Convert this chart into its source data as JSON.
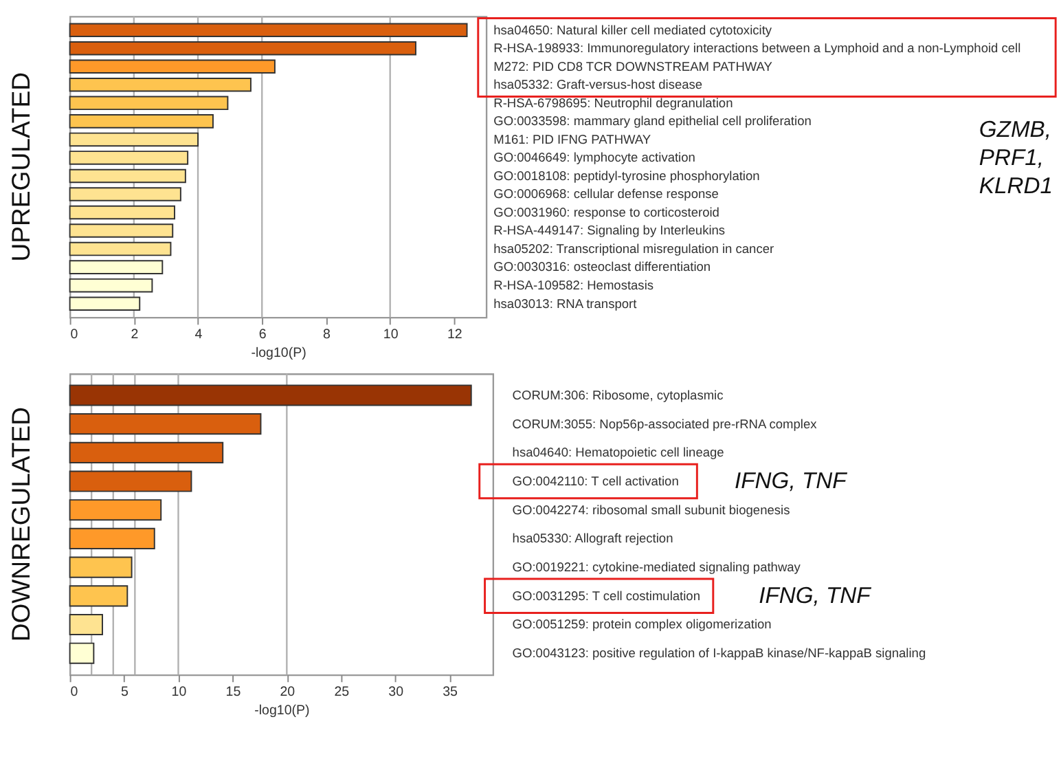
{
  "chart_data": [
    {
      "type": "bar",
      "orientation": "horizontal",
      "xlabel": "-log10(P)",
      "xlim": [
        0,
        13
      ],
      "xticks": [
        0,
        2,
        4,
        6,
        8,
        10,
        12
      ],
      "grid": false,
      "categories": [
        "hsa04650: Natural killer cell mediated cytotoxicity",
        "R-HSA-198933: Immunoregulatory interactions between a Lymphoid and a non-Lymphoid cell",
        "M272: PID CD8 TCR DOWNSTREAM PATHWAY",
        "hsa05332: Graft-versus-host disease",
        "R-HSA-6798695: Neutrophil degranulation",
        "GO:0033598: mammary gland epithelial cell proliferation",
        "M161: PID IFNG PATHWAY",
        "GO:0046649: lymphocyte activation",
        "GO:0018108: peptidyl-tyrosine phosphorylation",
        "GO:0006968: cellular defense response",
        "GO:0031960: response to corticosteroid",
        "R-HSA-449147: Signaling by Interleukins",
        "hsa05202: Transcriptional misregulation in cancer",
        "GO:0030316: osteoclast differentiation",
        "R-HSA-109582: Hemostasis",
        "hsa03013: RNA transport"
      ],
      "values": [
        12.4,
        10.8,
        6.4,
        5.65,
        4.93,
        4.47,
        4.0,
        3.68,
        3.61,
        3.46,
        3.27,
        3.21,
        3.15,
        2.89,
        2.57,
        2.18
      ],
      "colors": [
        "#d95f0e",
        "#d95f0e",
        "#fe9929",
        "#fec44f",
        "#fec44f",
        "#fec44f",
        "#fee391",
        "#fee391",
        "#fee391",
        "#fee391",
        "#fee391",
        "#fee391",
        "#fee391",
        "#ffffd4",
        "#ffffd4",
        "#ffffd4"
      ],
      "ref_lines": [
        {
          "axis": "x",
          "value": 2,
          "color": "#b0b0b0"
        },
        {
          "axis": "x",
          "value": 4,
          "color": "#b0b0b0"
        },
        {
          "axis": "x",
          "value": 6,
          "color": "#b0b0b0"
        },
        {
          "axis": "x",
          "value": 10,
          "color": "#b0b0b0"
        }
      ],
      "annotations": [
        "UPREGULATED",
        "GZMB, PRF1, KLRD1"
      ]
    },
    {
      "type": "bar",
      "orientation": "horizontal",
      "xlabel": "-log10(P)",
      "xlim": [
        0,
        39
      ],
      "xticks": [
        0,
        5,
        10,
        15,
        20,
        25,
        30,
        35
      ],
      "grid": false,
      "categories": [
        "CORUM:306: Ribosome, cytoplasmic",
        "CORUM:3055: Nop56p-associated pre-rRNA complex",
        "hsa04640: Hematopoietic cell lineage",
        "GO:0042110: T cell activation",
        "GO:0042274: ribosomal small subunit biogenesis",
        "hsa05330: Allograft rejection",
        "GO:0019221: cytokine-mediated signaling pathway",
        "GO:0031295: T cell costimulation",
        "GO:0051259: protein complex oligomerization",
        "GO:0043123: positive regulation of I-kappaB kinase/NF-kappaB signaling"
      ],
      "values": [
        37.0,
        17.6,
        14.1,
        11.2,
        8.4,
        7.8,
        5.7,
        5.3,
        3.0,
        2.2
      ],
      "colors": [
        "#993404",
        "#d95f0e",
        "#d95f0e",
        "#d95f0e",
        "#fe9929",
        "#fe9929",
        "#fec44f",
        "#fec44f",
        "#fee391",
        "#ffffd4"
      ],
      "ref_lines": [
        {
          "axis": "x",
          "value": 2,
          "color": "#b0b0b0"
        },
        {
          "axis": "x",
          "value": 4,
          "color": "#b0b0b0"
        },
        {
          "axis": "x",
          "value": 6,
          "color": "#b0b0b0"
        },
        {
          "axis": "x",
          "value": 10,
          "color": "#b0b0b0"
        },
        {
          "axis": "x",
          "value": 20,
          "color": "#b0b0b0"
        }
      ],
      "annotations": [
        "DOWNREGULATED",
        "IFNG, TNF",
        "IFNG, TNF"
      ]
    }
  ]
}
